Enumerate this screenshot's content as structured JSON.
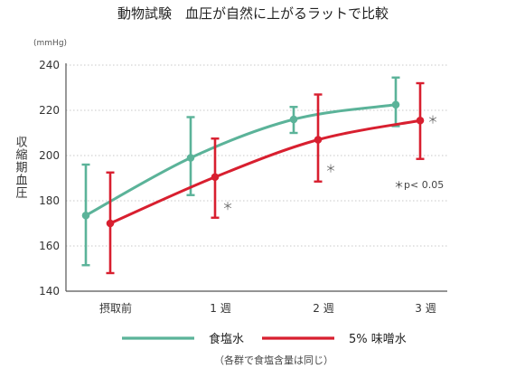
{
  "chart_data": {
    "type": "line",
    "title": "動物試験　血圧が自然に上がるラットで比較",
    "unit": "(mmHg)",
    "ylabel": "収縮期血圧",
    "ylim": [
      140,
      240
    ],
    "yticks": [
      140,
      160,
      180,
      200,
      220,
      240
    ],
    "categories": [
      "摂取前",
      "1 週",
      "2 週",
      "3 週"
    ],
    "grid": true,
    "series": [
      {
        "name": "食塩水",
        "color": "#5bb399",
        "values": [
          173.5,
          199,
          216,
          222.5
        ],
        "err_low": [
          151.5,
          182.5,
          210,
          213
        ],
        "err_high": [
          196,
          217,
          221.5,
          234.5
        ]
      },
      {
        "name": "5% 味噌水",
        "color": "#d81f2f",
        "values": [
          170,
          190.5,
          207,
          215.5
        ],
        "err_low": [
          148,
          172.5,
          188.5,
          198.5
        ],
        "err_high": [
          192.5,
          207.5,
          227,
          232
        ]
      }
    ],
    "significance_markers": [
      "",
      "＊",
      "＊",
      "＊"
    ],
    "annotation": "＊p< 0.05",
    "legend_note": "（各群で食塩含量は同じ）",
    "legend_position": "bottom"
  }
}
